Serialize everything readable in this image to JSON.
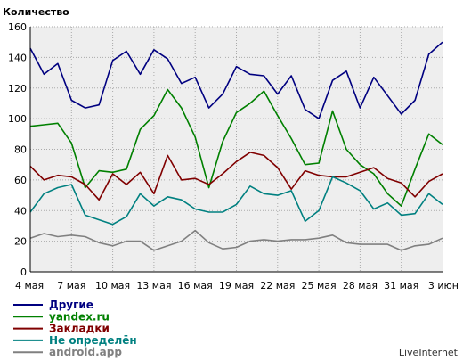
{
  "chart_data": {
    "type": "line",
    "ylabel": "Количество",
    "ylim": [
      0,
      160
    ],
    "yticks": [
      0,
      20,
      40,
      60,
      80,
      100,
      120,
      140,
      160
    ],
    "grid": true,
    "x_tick_labels": [
      "4 мая",
      "7 мая",
      "10 мая",
      "13 мая",
      "16 мая",
      "19 мая",
      "22 мая",
      "25 мая",
      "28 мая",
      "31 мая",
      "3 июн"
    ],
    "x_tick_every": 3,
    "legend_position": "bottom-left",
    "series": [
      {
        "name": "Другие",
        "color": "#000080",
        "values": [
          146,
          129,
          136,
          112,
          107,
          109,
          138,
          144,
          129,
          145,
          139,
          123,
          127,
          107,
          116,
          134,
          129,
          128,
          116,
          128,
          106,
          100,
          125,
          131,
          107,
          127,
          115,
          103,
          112,
          142,
          150
        ]
      },
      {
        "name": "yandex.ru",
        "color": "#008000",
        "values": [
          95,
          96,
          97,
          84,
          55,
          66,
          65,
          67,
          93,
          102,
          119,
          107,
          88,
          55,
          85,
          104,
          110,
          118,
          102,
          87,
          70,
          71,
          105,
          80,
          70,
          64,
          51,
          43,
          67,
          90,
          83
        ]
      },
      {
        "name": "Закладки",
        "color": "#800000",
        "values": [
          69,
          60,
          63,
          62,
          57,
          47,
          64,
          57,
          65,
          51,
          76,
          60,
          61,
          57,
          64,
          72,
          78,
          76,
          68,
          54,
          66,
          63,
          62,
          62,
          65,
          68,
          61,
          58,
          49,
          59,
          64
        ]
      },
      {
        "name": "Не определён",
        "color": "#008080",
        "values": [
          39,
          51,
          55,
          57,
          37,
          34,
          31,
          36,
          51,
          43,
          49,
          47,
          41,
          39,
          39,
          44,
          56,
          51,
          50,
          53,
          33,
          40,
          62,
          58,
          53,
          41,
          45,
          37,
          38,
          51,
          44
        ]
      },
      {
        "name": "android.app",
        "color": "#808080",
        "values": [
          22,
          25,
          23,
          24,
          23,
          19,
          17,
          20,
          20,
          14,
          17,
          20,
          27,
          19,
          15,
          16,
          20,
          21,
          20,
          21,
          21,
          22,
          24,
          19,
          18,
          18,
          18,
          14,
          17,
          18,
          22
        ]
      }
    ]
  },
  "credit": "LiveInternet"
}
